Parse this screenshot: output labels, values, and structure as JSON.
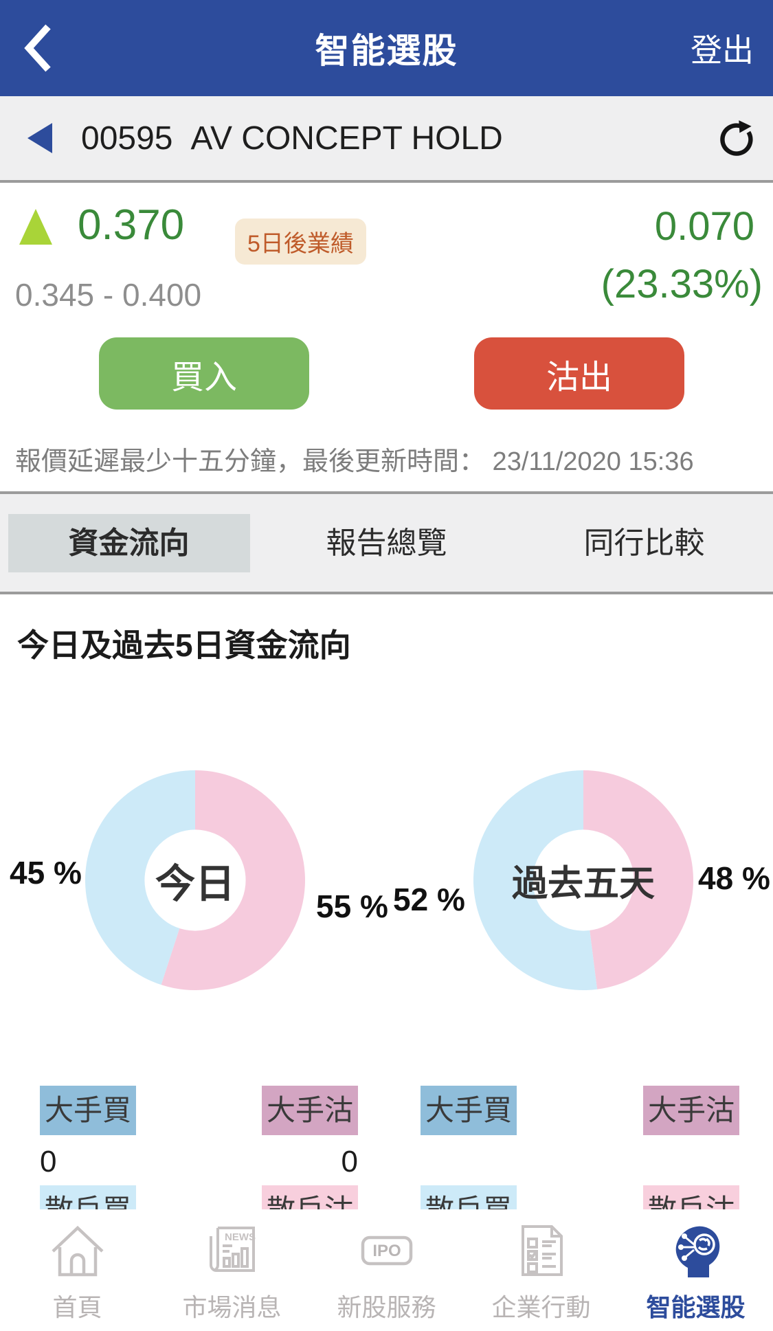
{
  "colors": {
    "header_bg": "#2d4c9c",
    "price_up_green": "#3a8a3a",
    "triangle_lime": "#a9d438",
    "buy_green": "#7cb961",
    "sell_red": "#d8513d",
    "donut_buy_blue": "#cdeaf8",
    "donut_sell_pink": "#f6cbdd",
    "legend_big_buy": "#8fbdda",
    "legend_big_sell": "#d3a5c2",
    "legend_retail_buy": "#cdeaf8",
    "legend_retail_sell": "#f8cfdd"
  },
  "header": {
    "title": "智能選股",
    "logout_label": "登出"
  },
  "stock_bar": {
    "code": "00595",
    "name": "AV CONCEPT HOLD"
  },
  "quote": {
    "price": "0.370",
    "badge": "5日後業績",
    "change": "0.070",
    "change_pct": "(23.33%)",
    "range": "0.345 - 0.400"
  },
  "actions": {
    "buy_label": "買入",
    "sell_label": "沽出"
  },
  "note": "報價延遲最少十五分鐘，最後更新時間： 23/11/2020 15:36",
  "tabs": [
    {
      "label": "資金流向",
      "active": true
    },
    {
      "label": "報告總覽",
      "active": false
    },
    {
      "label": "同行比較",
      "active": false
    }
  ],
  "section_title": "今日及過去5日資金流向",
  "chart_data": [
    {
      "type": "pie",
      "title": "今日",
      "center_label": "今日",
      "start": "top",
      "direction": "clockwise",
      "donut_hole_ratio": 0.46,
      "slices": [
        {
          "label": "沽出",
          "pct": 55,
          "color": "#f6cbdd"
        },
        {
          "label": "買入",
          "pct": 45,
          "color": "#cdeaf8"
        }
      ],
      "left_label": "45 %",
      "right_label": "55 %"
    },
    {
      "type": "pie",
      "title": "過去五天",
      "center_label": "過去五天",
      "start": "top",
      "direction": "clockwise",
      "donut_hole_ratio": 0.46,
      "slices": [
        {
          "label": "沽出",
          "pct": 48,
          "color": "#f6cbdd"
        },
        {
          "label": "買入",
          "pct": 52,
          "color": "#cdeaf8"
        }
      ],
      "left_label": "52 %",
      "right_label": "48 %"
    }
  ],
  "flow_legend": {
    "row1": [
      {
        "label": "大手買",
        "bg": "#8fbdda",
        "value": "0"
      },
      {
        "label": "大手沽",
        "bg": "#d3a5c2",
        "value": "0"
      },
      {
        "label": "大手買",
        "bg": "#8fbdda",
        "value": ""
      },
      {
        "label": "大手沽",
        "bg": "#d3a5c2",
        "value": ""
      }
    ],
    "row2": [
      {
        "label": "散戶買",
        "bg": "#cdeaf8"
      },
      {
        "label": "散戶沽",
        "bg": "#f8cfdd"
      },
      {
        "label": "散戶買",
        "bg": "#cdeaf8"
      },
      {
        "label": "散戶沽",
        "bg": "#f8cfdd"
      }
    ]
  },
  "bottom_nav": [
    {
      "label": "首頁",
      "active": false
    },
    {
      "label": "市場消息",
      "active": false
    },
    {
      "label": "新股服務",
      "active": false
    },
    {
      "label": "企業行動",
      "active": false
    },
    {
      "label": "智能選股",
      "active": true
    }
  ]
}
